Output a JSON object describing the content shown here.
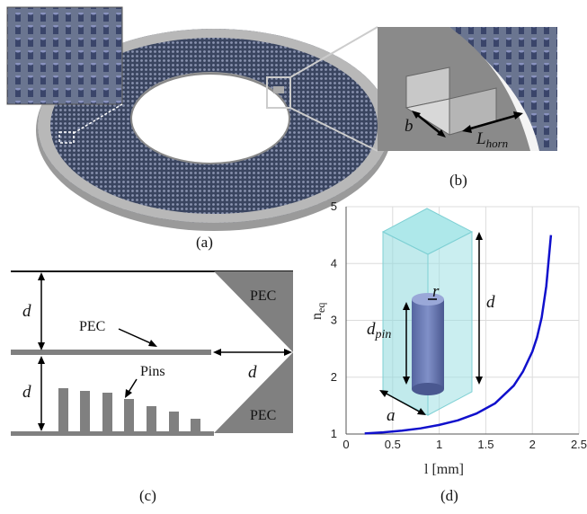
{
  "panels": {
    "a": {
      "caption": "(a)"
    },
    "b": {
      "caption": "(b)",
      "label_b": "b",
      "label_horn_main": "L",
      "label_horn_sub": "horn"
    },
    "c": {
      "caption": "(c)",
      "pec_top": "PEC",
      "pec_mid": "PEC",
      "pec_bottom": "PEC",
      "pins": "Pins",
      "d_top": "d",
      "d_bottom": "d",
      "d_right": "d"
    },
    "d": {
      "caption": "(d)",
      "label_r": "r",
      "label_d": "d",
      "label_dpin_main": "d",
      "label_dpin_sub": "pin",
      "label_a": "a"
    }
  },
  "chart_data": {
    "type": "line",
    "xlabel": "l [mm]",
    "ylabel": "n_eq",
    "ylabel_main": "n",
    "ylabel_sub": "eq",
    "xlim": [
      0,
      2.5
    ],
    "ylim": [
      1,
      5
    ],
    "xticks": [
      "0",
      "0.5",
      "1",
      "1.5",
      "2",
      "2.5"
    ],
    "yticks": [
      "1",
      "2",
      "3",
      "4",
      "5"
    ],
    "grid": true,
    "series": [
      {
        "color": "#1010cc",
        "x": [
          0.2,
          0.4,
          0.6,
          0.8,
          1.0,
          1.2,
          1.4,
          1.6,
          1.8,
          1.9,
          2.0,
          2.05,
          2.1,
          2.15,
          2.2
        ],
        "y": [
          1.01,
          1.03,
          1.06,
          1.1,
          1.16,
          1.24,
          1.36,
          1.54,
          1.85,
          2.1,
          2.45,
          2.7,
          3.05,
          3.6,
          4.5
        ]
      }
    ]
  }
}
